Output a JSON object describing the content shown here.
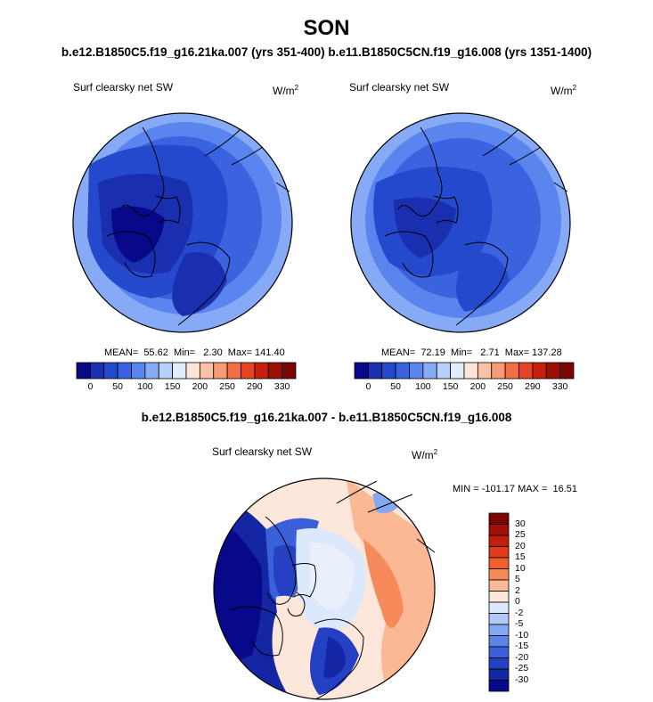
{
  "header": {
    "season": "SON",
    "subtitle": "b.e12.B1850C5.f19_g16.21ka.007 (yrs 351-400) b.e11.B1850C5CN.f19_g16.008 (yrs 1351-1400)"
  },
  "panels": [
    {
      "variable": "Surf clearsky net SW",
      "units_base": "W/m",
      "units_exp": "2",
      "stats_text": "MEAN=  55.62  Min=   2.30  Max= 141.40",
      "mean": 55.62,
      "min": 2.3,
      "max": 141.4
    },
    {
      "variable": "Surf clearsky net SW",
      "units_base": "W/m",
      "units_exp": "2",
      "stats_text": "MEAN=  72.19  Min=   2.71  Max= 137.28",
      "mean": 72.19,
      "min": 2.71,
      "max": 137.28
    }
  ],
  "colorbar_top": {
    "tick_labels": [
      "0",
      "50",
      "100",
      "150",
      "200",
      "250",
      "290",
      "330"
    ],
    "colors": [
      "#08088a",
      "#1a2fb0",
      "#2449cc",
      "#3b63e0",
      "#5b85ee",
      "#86aaf5",
      "#b7cff9",
      "#e2edfb",
      "#fde3d6",
      "#fbc2a6",
      "#f79a73",
      "#f26e45",
      "#e64422",
      "#c8200f",
      "#9c0f05",
      "#7a0502"
    ]
  },
  "difference": {
    "title": "b.e12.B1850C5.f19_g16.21ka.007 - b.e11.B1850C5CN.f19_g16.008",
    "variable": "Surf clearsky net SW",
    "units_base": "W/m",
    "units_exp": "2",
    "minmax_text": "MIN = -101.17 MAX =  16.51",
    "min": -101.17,
    "max": 16.51
  },
  "colorbar_diff": {
    "tick_labels": [
      "30",
      "25",
      "20",
      "15",
      "10",
      "5",
      "2",
      "0",
      "-2",
      "-5",
      "-10",
      "-15",
      "-20",
      "-25",
      "-30"
    ],
    "colors": [
      "#7a0502",
      "#a10f05",
      "#c41d0c",
      "#e03a1c",
      "#f0602e",
      "#f68a5a",
      "#fab895",
      "#fde6da",
      "#dce8fb",
      "#b2caf7",
      "#84a8f1",
      "#5b84e8",
      "#3a60da",
      "#2441c4",
      "#1426a4",
      "#08088a"
    ]
  }
}
